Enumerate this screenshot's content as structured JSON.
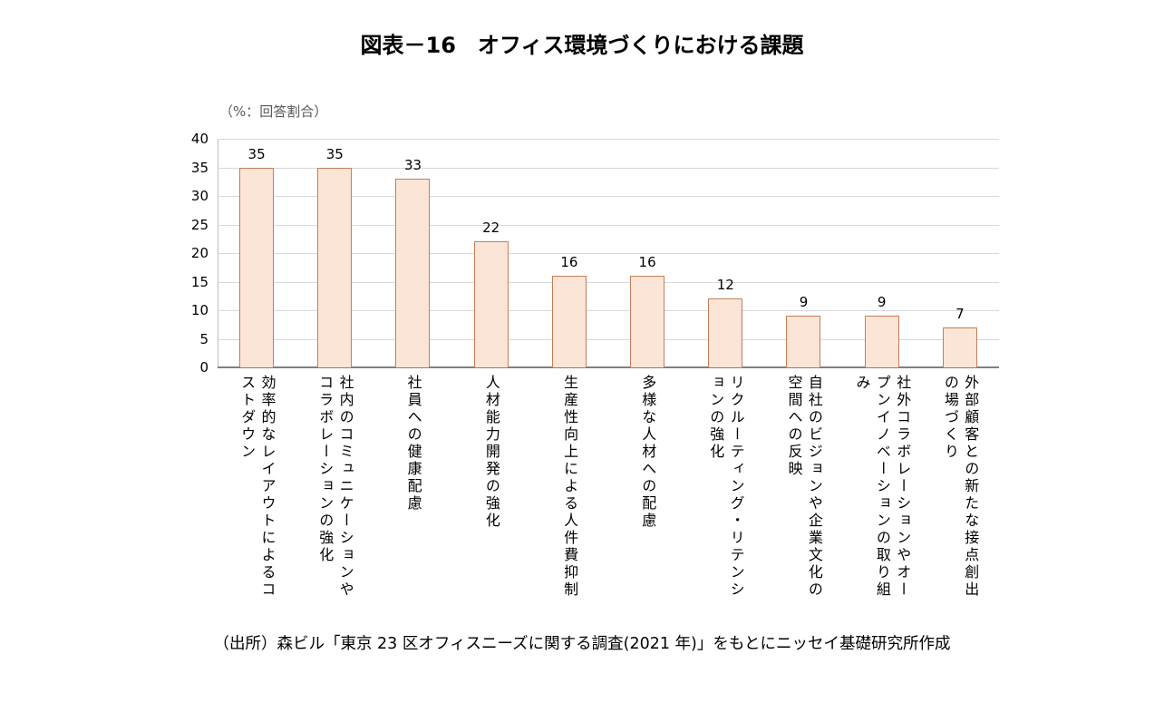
{
  "title": "図表－16　オフィス環境づくりにおける課題",
  "source": "（出所）森ビル「東京 23 区オフィスニーズに関する調査(2021 年)」をもとにニッセイ基礎研究所作成",
  "chart_data": {
    "type": "bar",
    "title": "図表－16　オフィス環境づくりにおける課題",
    "unit_label": "（%：回答割合）",
    "categories": [
      "効率的なレイアウトによるコストダウン",
      "社内のコミュニケーションやコラボレーションの強化",
      "社員への健康配慮",
      "人材能力開発の強化",
      "生産性向上による人件費抑制",
      "多様な人材への配慮",
      "リクルーティング・リテンションの強化",
      "自社のビジョンや企業文化の空間への反映",
      "社外コラボレーションやオープンイノベーションの取り組み",
      "外部顧客との新たな接点創出の場づくり"
    ],
    "values": [
      35,
      35,
      33,
      22,
      16,
      16,
      12,
      9,
      9,
      7
    ],
    "ylim": [
      0,
      40
    ],
    "ytick_interval": 5,
    "grid": true,
    "legend": "none",
    "bar_fill": "#FBE5D6",
    "bar_border": "#C47E5A"
  }
}
